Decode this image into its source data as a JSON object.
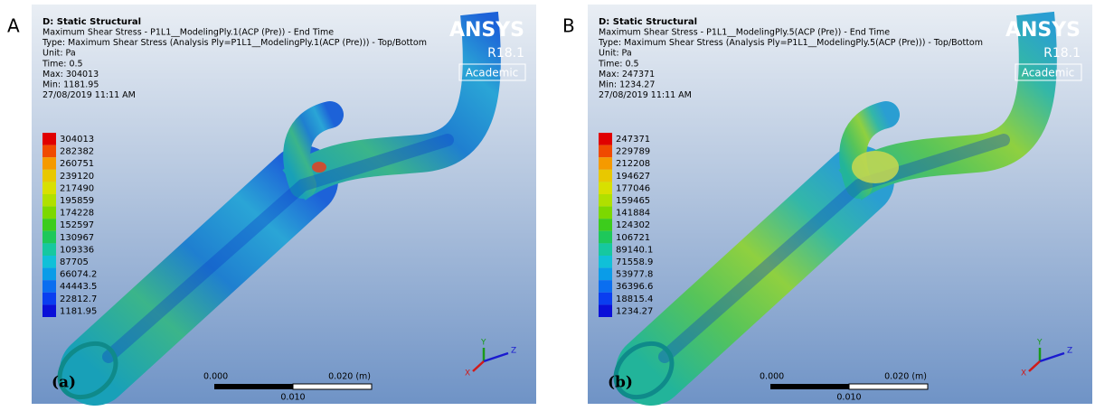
{
  "panels": [
    {
      "letter": "A",
      "title": "D: Static Structural",
      "info": [
        "Maximum Shear Stress - P1L1__ModelingPly.1(ACP (Pre)) - End Time",
        "Type: Maximum Shear Stress (Analysis Ply=P1L1__ModelingPly.1(ACP (Pre))) - Top/Bottom",
        "Unit: Pa",
        "Time: 0.5",
        "Max: 304013",
        "Min: 1181.95",
        "27/08/2019 11:11 AM"
      ],
      "logo": {
        "brand": "ANSYS",
        "version": "R18.1",
        "license": "Academic"
      },
      "legend": [
        "304013",
        "282382",
        "260751",
        "239120",
        "217490",
        "195859",
        "174228",
        "152597",
        "130967",
        "109336",
        "87705",
        "66074.2",
        "44443.5",
        "22812.7",
        "1181.95"
      ],
      "scale": {
        "start": "0.000",
        "end": "0.020 (m)",
        "middle": "0.010"
      },
      "axes": {
        "x": "X",
        "y": "Y",
        "z": "Z"
      },
      "caption": "(a)"
    },
    {
      "letter": "B",
      "title": "D: Static Structural",
      "info": [
        "Maximum Shear Stress - P1L1__ModelingPly.5(ACP (Pre)) - End Time",
        "Type: Maximum Shear Stress (Analysis Ply=P1L1__ModelingPly.5(ACP (Pre))) - Top/Bottom",
        "Unit: Pa",
        "Time: 0.5",
        "Max: 247371",
        "Min: 1234.27",
        "27/08/2019 11:11 AM"
      ],
      "logo": {
        "brand": "ANSYS",
        "version": "R18.1",
        "license": "Academic"
      },
      "legend": [
        "247371",
        "229789",
        "212208",
        "194627",
        "177046",
        "159465",
        "141884",
        "124302",
        "106721",
        "89140.1",
        "71558.9",
        "53977.8",
        "36396.6",
        "18815.4",
        "1234.27"
      ],
      "scale": {
        "start": "0.000",
        "end": "0.020 (m)",
        "middle": "0.010"
      },
      "axes": {
        "x": "X",
        "y": "Y",
        "z": "Z"
      },
      "caption": "(b)"
    }
  ]
}
